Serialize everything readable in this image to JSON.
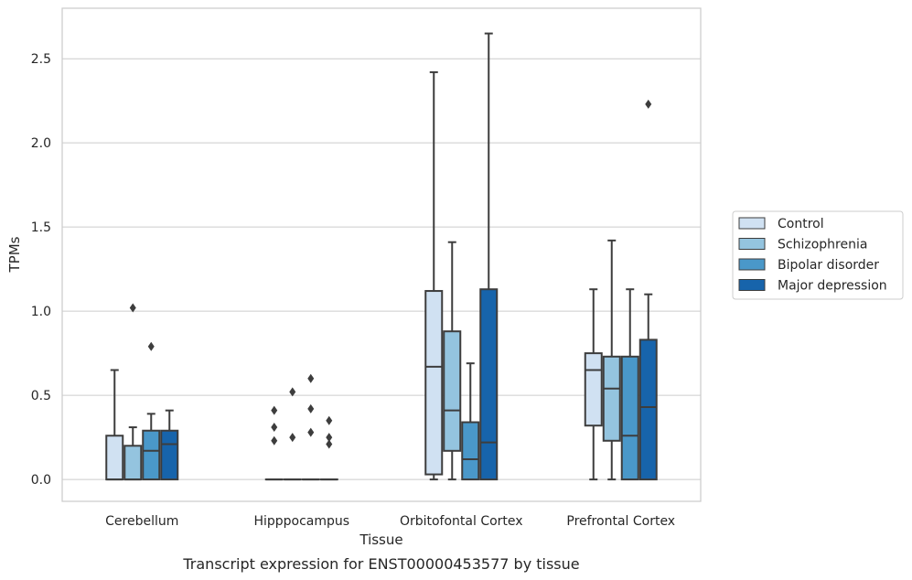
{
  "chart_data": {
    "type": "box",
    "title": "",
    "caption": "Transcript expression for ENST00000453577 by tissue",
    "xlabel": "Tissue",
    "ylabel": "TPMs",
    "ylim": [
      -0.13,
      2.8
    ],
    "yticks": [
      0.0,
      0.5,
      1.0,
      1.5,
      2.0,
      2.5
    ],
    "ytick_labels": [
      "0.0",
      "0.5",
      "1.0",
      "1.5",
      "2.0",
      "2.5"
    ],
    "grid": "horizontal",
    "legend_position": "right",
    "categories": [
      "Cerebellum",
      "Hipppocampus",
      "Orbitofontal Cortex",
      "Prefrontal Cortex"
    ],
    "series": [
      {
        "name": "Control",
        "color": "#d0e1f2",
        "boxes": [
          {
            "whislo": 0.0,
            "q1": 0.0,
            "med": 0.0,
            "q3": 0.26,
            "whishi": 0.65,
            "fliers": []
          },
          {
            "whislo": 0.0,
            "q1": 0.0,
            "med": 0.0,
            "q3": 0.0,
            "whishi": 0.0,
            "fliers": [
              0.23,
              0.31,
              0.41
            ]
          },
          {
            "whislo": 0.0,
            "q1": 0.03,
            "med": 0.67,
            "q3": 1.12,
            "whishi": 2.42,
            "fliers": []
          },
          {
            "whislo": 0.0,
            "q1": 0.32,
            "med": 0.65,
            "q3": 0.75,
            "whishi": 1.13,
            "fliers": []
          }
        ]
      },
      {
        "name": "Schizophrenia",
        "color": "#94c4df",
        "boxes": [
          {
            "whislo": 0.0,
            "q1": 0.0,
            "med": 0.0,
            "q3": 0.2,
            "whishi": 0.31,
            "fliers": [
              1.02
            ]
          },
          {
            "whislo": 0.0,
            "q1": 0.0,
            "med": 0.0,
            "q3": 0.0,
            "whishi": 0.0,
            "fliers": [
              0.25,
              0.52
            ]
          },
          {
            "whislo": 0.0,
            "q1": 0.17,
            "med": 0.41,
            "q3": 0.88,
            "whishi": 1.41,
            "fliers": []
          },
          {
            "whislo": 0.0,
            "q1": 0.23,
            "med": 0.54,
            "q3": 0.73,
            "whishi": 1.42,
            "fliers": []
          }
        ]
      },
      {
        "name": "Bipolar disorder",
        "color": "#4a98c9",
        "boxes": [
          {
            "whislo": 0.0,
            "q1": 0.0,
            "med": 0.17,
            "q3": 0.29,
            "whishi": 0.39,
            "fliers": [
              0.79
            ]
          },
          {
            "whislo": 0.0,
            "q1": 0.0,
            "med": 0.0,
            "q3": 0.0,
            "whishi": 0.0,
            "fliers": [
              0.28,
              0.42,
              0.6
            ]
          },
          {
            "whislo": 0.0,
            "q1": 0.0,
            "med": 0.12,
            "q3": 0.34,
            "whishi": 0.69,
            "fliers": []
          },
          {
            "whislo": 0.0,
            "q1": 0.0,
            "med": 0.26,
            "q3": 0.73,
            "whishi": 1.13,
            "fliers": []
          }
        ]
      },
      {
        "name": "Major depression",
        "color": "#1764ab",
        "boxes": [
          {
            "whislo": 0.0,
            "q1": 0.0,
            "med": 0.21,
            "q3": 0.29,
            "whishi": 0.41,
            "fliers": []
          },
          {
            "whislo": 0.0,
            "q1": 0.0,
            "med": 0.0,
            "q3": 0.0,
            "whishi": 0.0,
            "fliers": [
              0.21,
              0.25,
              0.35
            ]
          },
          {
            "whislo": 0.0,
            "q1": 0.0,
            "med": 0.22,
            "q3": 1.13,
            "whishi": 2.65,
            "fliers": []
          },
          {
            "whislo": 0.0,
            "q1": 0.0,
            "med": 0.43,
            "q3": 0.83,
            "whishi": 1.1,
            "fliers": [
              2.23
            ]
          }
        ]
      }
    ]
  }
}
